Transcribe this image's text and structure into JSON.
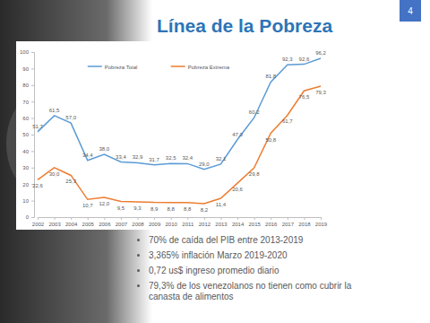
{
  "chart_data": {
    "type": "line",
    "title": "Línea de la Pobreza",
    "categories": [
      "2002",
      "2003",
      "2004",
      "2005",
      "2006",
      "2007",
      "2008",
      "2009",
      "2010",
      "2011",
      "2012",
      "2013",
      "2014",
      "2015",
      "2016",
      "2017",
      "2018",
      "2019"
    ],
    "series": [
      {
        "name": "Pobreza Total",
        "color": "#5b9bd5",
        "values": [
          51.7,
          61.5,
          57.0,
          34.4,
          38.0,
          33.4,
          32.9,
          31.7,
          32.5,
          32.4,
          29.0,
          32.1,
          47.0,
          60.2,
          81.8,
          92.3,
          92.6,
          96.2
        ],
        "value_labels": [
          "51,7",
          "61,5",
          "57,0",
          "34,4",
          "38,0",
          "33,4",
          "32,9",
          "31,7",
          "32,5",
          "32,4",
          "29,0",
          "32,1",
          "47,0",
          "60,2",
          "81,8",
          "92,3",
          "92,6",
          "96,2"
        ]
      },
      {
        "name": "Pobreza Extrema",
        "color": "#ed7d31",
        "values": [
          22.6,
          30.0,
          25.3,
          10.7,
          12.0,
          9.5,
          9.3,
          8.9,
          8.8,
          8.8,
          8.2,
          11.4,
          20.6,
          29.8,
          50.8,
          61.7,
          76.5,
          79.3
        ],
        "value_labels": [
          "22,6",
          "30,0",
          "25,3",
          "10,7",
          "12,0",
          "9,5",
          "9,3",
          "8,9",
          "8,8",
          "8,8",
          "8,2",
          "11,4",
          "20,6",
          "29,8",
          "50,8",
          "61,7",
          "76,5",
          "79,3"
        ]
      }
    ],
    "ylim": [
      0,
      100
    ],
    "yticks": [
      0,
      10,
      20,
      30,
      40,
      50,
      60,
      70,
      80,
      90,
      100
    ],
    "grid": false,
    "legend": "top",
    "data_labels": true,
    "annotations": [
      "70% de caída del PIB entre 2013-2019",
      "3,365% inflación Marzo 2019-2020",
      "0,72 us$ ingreso promedio diario",
      "79,3% de los venezolanos no tienen como cubrir la canasta de alimentos"
    ]
  },
  "slide": {
    "page_number": "4"
  }
}
